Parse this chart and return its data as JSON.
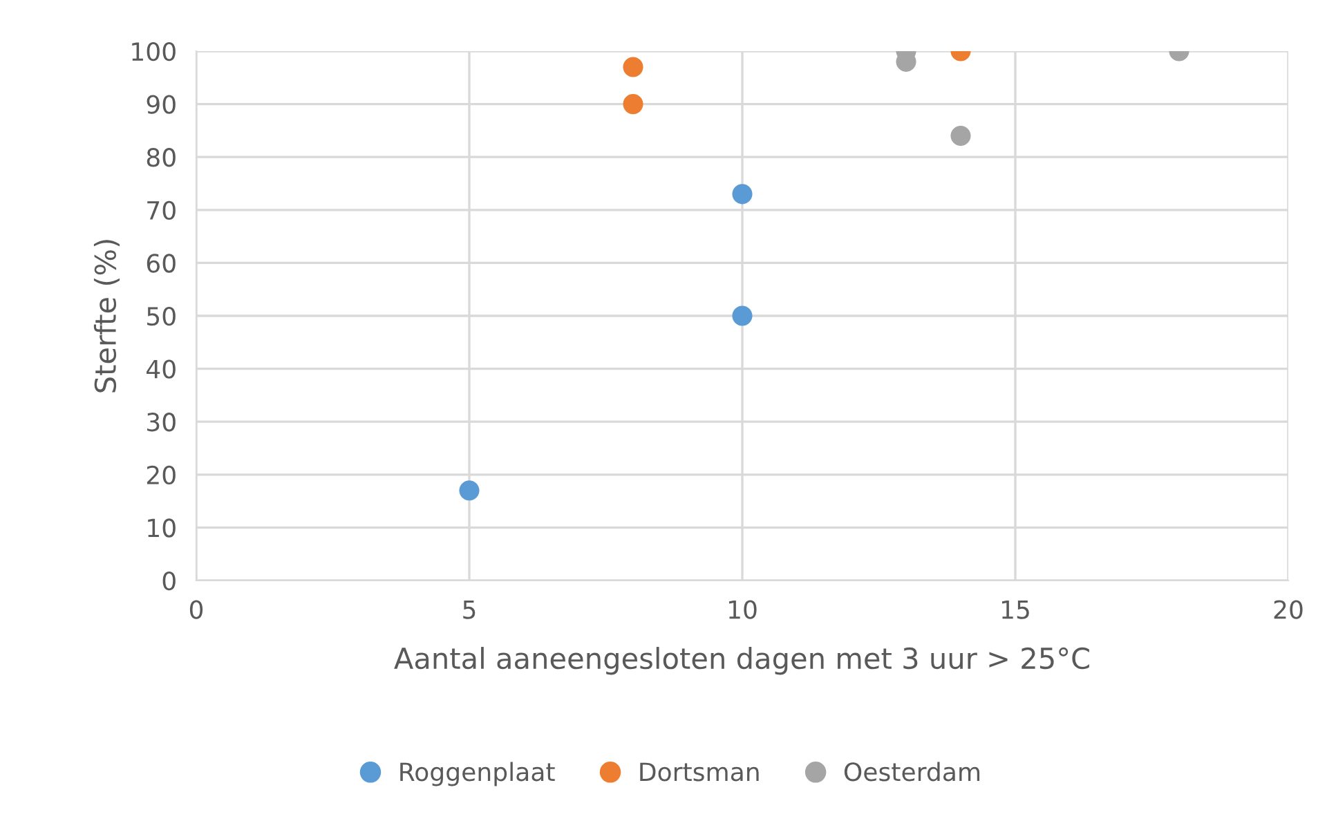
{
  "chart_data": {
    "type": "scatter",
    "xlabel": "Aantal aaneengesloten dagen met 3 uur > 25°C",
    "ylabel": "Sterfte (%)",
    "series": [
      {
        "name": "Roggenplaat",
        "color": "#5b9bd5",
        "x": [
          5,
          10,
          10
        ],
        "values": [
          17,
          50,
          73
        ]
      },
      {
        "name": "Dortsman",
        "color": "#ed7d31",
        "x": [
          8,
          8,
          14
        ],
        "values": [
          97,
          90,
          100
        ]
      },
      {
        "name": "Oesterdam",
        "color": "#a5a5a5",
        "x": [
          13,
          13,
          14,
          18
        ],
        "values": [
          100,
          98,
          84,
          100
        ]
      }
    ],
    "xlim": [
      0,
      20
    ],
    "xticks": [
      0,
      5,
      10,
      15,
      20
    ],
    "ylim": [
      0,
      100
    ],
    "yticks": [
      0,
      10,
      20,
      30,
      40,
      50,
      60,
      70,
      80,
      90,
      100
    ],
    "grid": true,
    "legend": "bottom",
    "marker": "circle"
  }
}
